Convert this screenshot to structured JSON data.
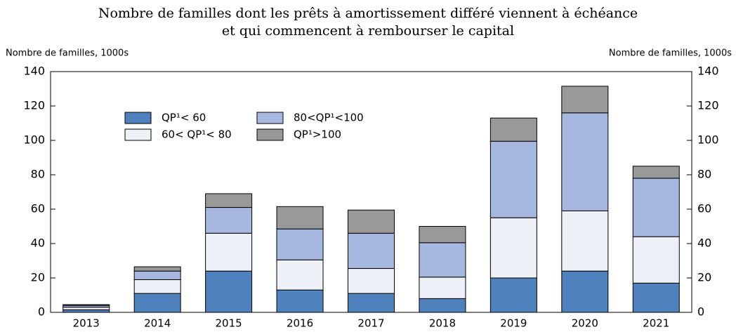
{
  "chart_data": {
    "type": "bar",
    "stacked": true,
    "title": [
      "Nombre de familles dont les prêts à amortissement différé viennent à échéance",
      "et qui commencent à rembourser le capital"
    ],
    "y_label": "Nombre de familles, 1000s",
    "y2_label": "Nombre de familles, 1000s",
    "categories": [
      "2013",
      "2014",
      "2015",
      "2016",
      "2017",
      "2018",
      "2019",
      "2020",
      "2021"
    ],
    "series": [
      {
        "name": "QP¹< 60",
        "color": "#4f81bd",
        "values": [
          1.5,
          11,
          24,
          13,
          11,
          8,
          20,
          24,
          17
        ]
      },
      {
        "name": "60< QP¹< 80",
        "color": "#eef0f8",
        "values": [
          1.5,
          8,
          22,
          17.5,
          14.5,
          12.5,
          35,
          35,
          27
        ]
      },
      {
        "name": "80<QP¹<100",
        "color": "#a7b8e0",
        "values": [
          1,
          5,
          15,
          18,
          20.5,
          20,
          44.5,
          57,
          34
        ]
      },
      {
        "name": "QP¹>100",
        "color": "#999999",
        "values": [
          0.5,
          2.5,
          8,
          13,
          13.5,
          9.5,
          13.5,
          15.5,
          7
        ]
      }
    ],
    "ylim": [
      0,
      140
    ],
    "yticks": [
      0,
      20,
      40,
      60,
      80,
      100,
      120,
      140
    ],
    "y2lim": [
      0,
      140
    ],
    "y2ticks": [
      0,
      20,
      40,
      60,
      80,
      100,
      120,
      140
    ]
  }
}
